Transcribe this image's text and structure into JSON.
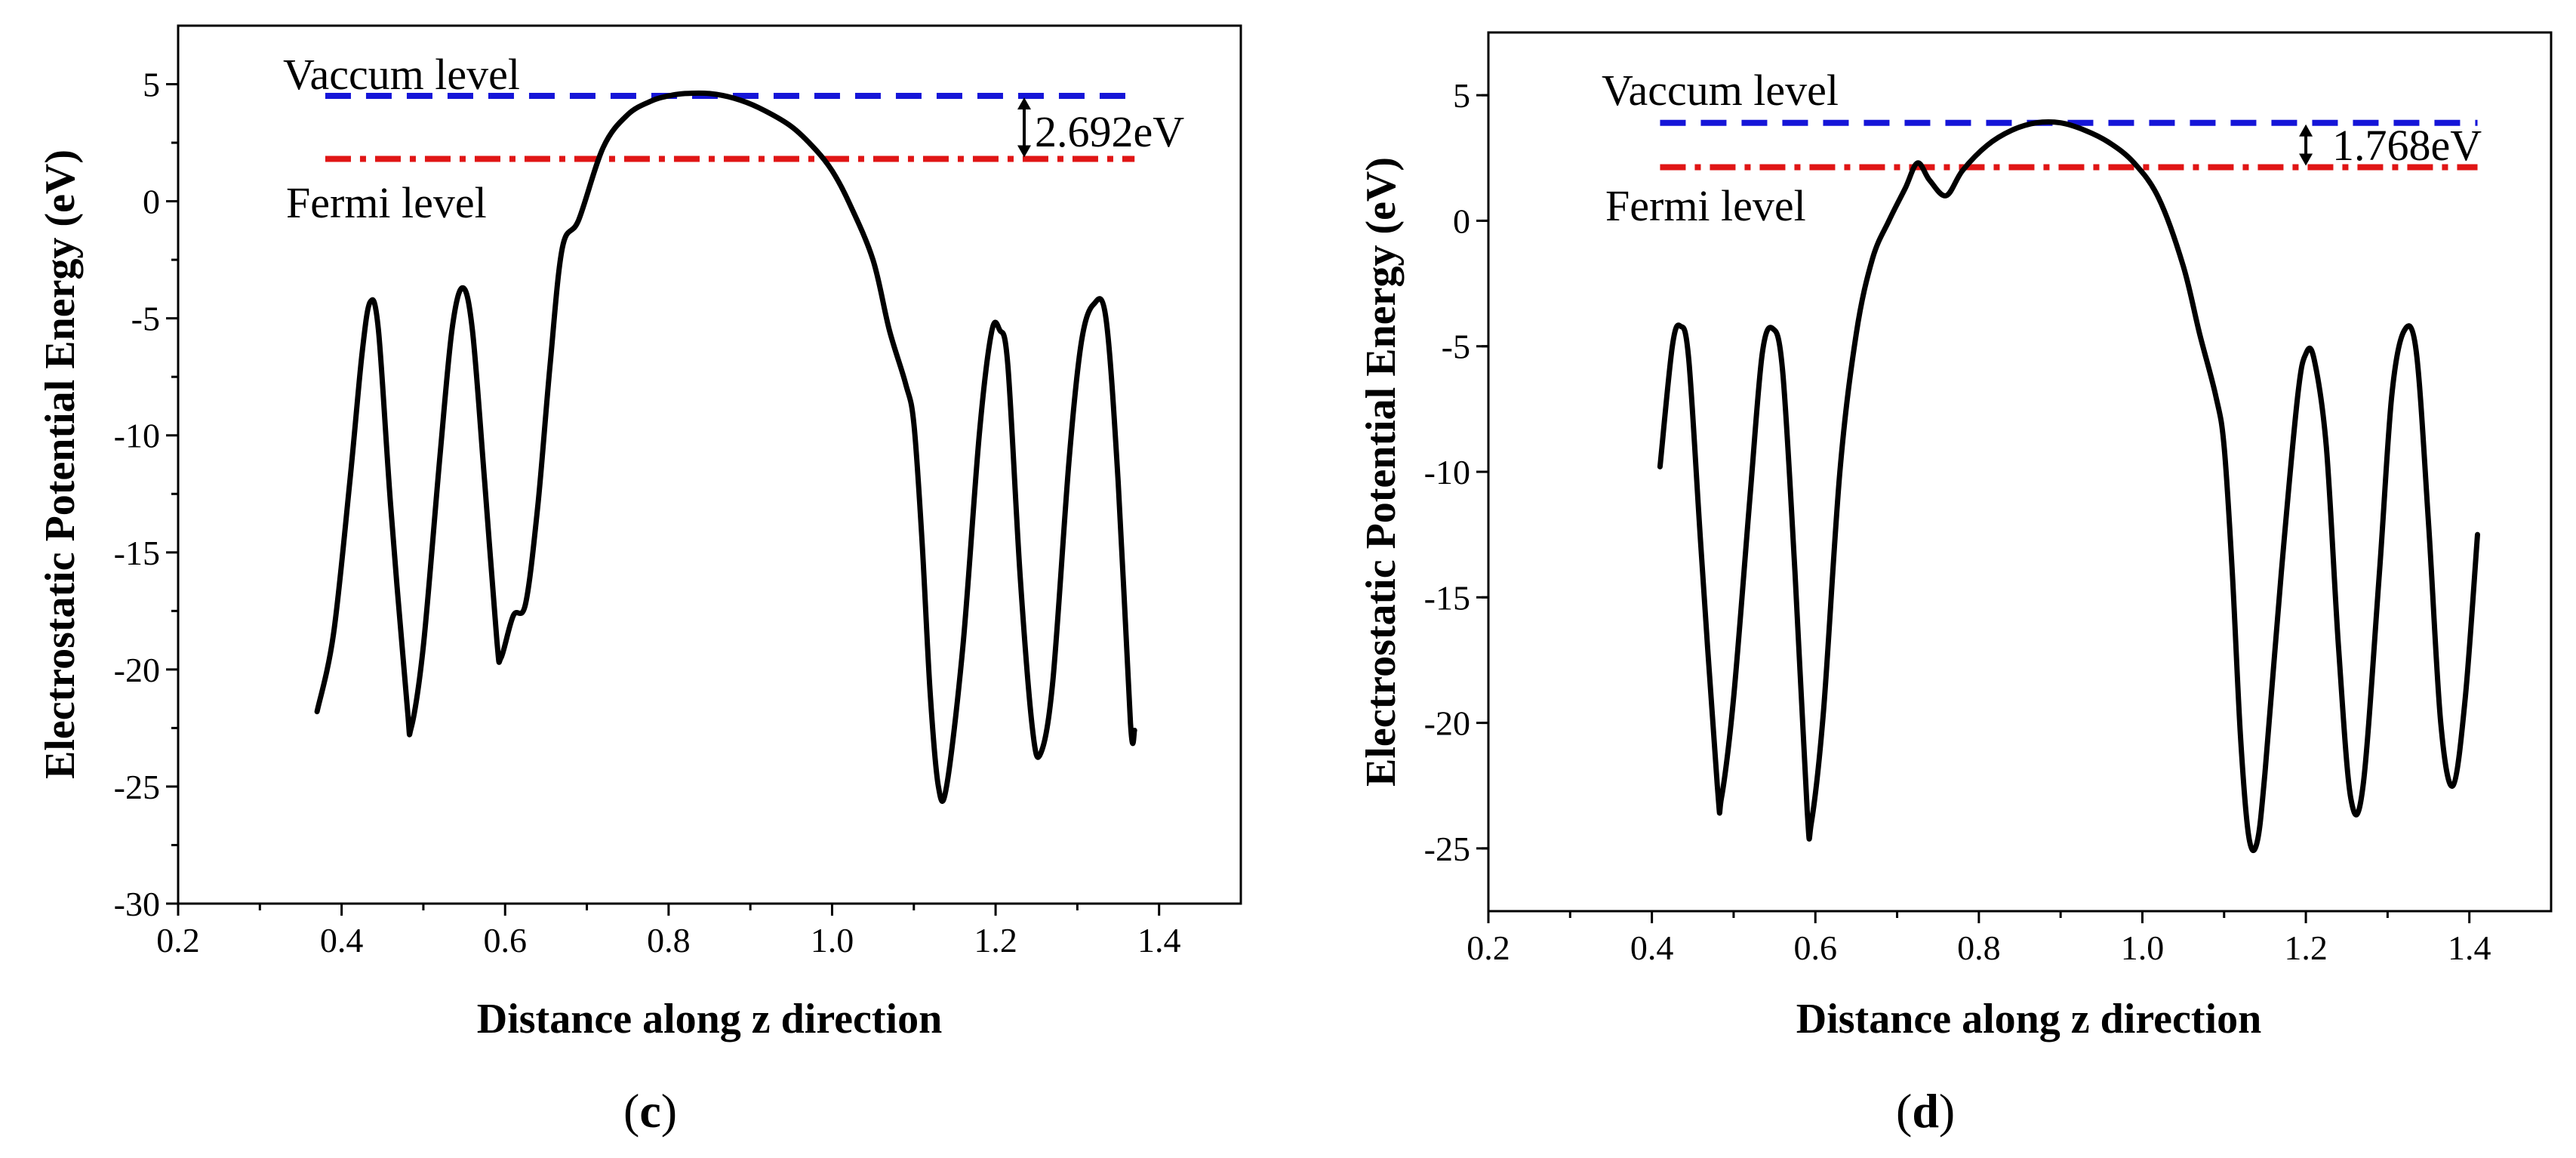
{
  "chart_data": [
    {
      "type": "line",
      "panel_label": "c",
      "xlabel": "Distance along z direction",
      "ylabel": "Electrostatic Potential Energy (eV)",
      "xlim": [
        0.2,
        1.5
      ],
      "ylim": [
        -30,
        7.5
      ],
      "xticks": [
        0.2,
        0.4,
        0.6,
        0.8,
        1.0,
        1.2,
        1.4
      ],
      "xtick_labels": [
        "0.2",
        "0.4",
        "0.6",
        "0.8",
        "1.0",
        "1.2",
        "1.4"
      ],
      "yticks": [
        5,
        0,
        -5,
        -10,
        -15,
        -20,
        -25,
        -30
      ],
      "ytick_labels": [
        "5",
        "0",
        "-5",
        "-10",
        "-15",
        "-20",
        "-25",
        "-30"
      ],
      "vacuum_level": {
        "label": "Vaccum level",
        "value": 4.5,
        "x_start": 0.38,
        "x_end": 1.37,
        "color": "#1515d8"
      },
      "fermi_level": {
        "label": "Fermi level",
        "value": 1.808,
        "x_start": 0.38,
        "x_end": 1.37,
        "color": "#e01515"
      },
      "gap": {
        "label": "2.692eV",
        "x": 1.235
      },
      "series": [
        {
          "name": "potential",
          "color": "#000000",
          "x": [
            0.37,
            0.39,
            0.41,
            0.425,
            0.435,
            0.445,
            0.46,
            0.48,
            0.485,
            0.5,
            0.52,
            0.535,
            0.548,
            0.56,
            0.575,
            0.59,
            0.595,
            0.61,
            0.625,
            0.64,
            0.655,
            0.67,
            0.69,
            0.72,
            0.75,
            0.78,
            0.8,
            0.82,
            0.85,
            0.88,
            0.91,
            0.95,
            0.98,
            1.0,
            1.02,
            1.05,
            1.07,
            1.09,
            1.1,
            1.11,
            1.12,
            1.13,
            1.14,
            1.16,
            1.18,
            1.195,
            1.205,
            1.215,
            1.23,
            1.245,
            1.255,
            1.27,
            1.29,
            1.305,
            1.32,
            1.335,
            1.35,
            1.365,
            1.37
          ],
          "y": [
            -21.8,
            -18.5,
            -12.0,
            -6.5,
            -4.3,
            -5.5,
            -13.0,
            -21.5,
            -22.5,
            -19.0,
            -11.0,
            -5.5,
            -3.7,
            -5.5,
            -12.0,
            -18.8,
            -19.5,
            -17.7,
            -17.2,
            -13.0,
            -7.0,
            -2.0,
            -0.8,
            2.3,
            3.7,
            4.3,
            4.5,
            4.6,
            4.6,
            4.4,
            4.0,
            3.2,
            2.2,
            1.3,
            0.0,
            -2.5,
            -5.5,
            -7.8,
            -9.5,
            -14.5,
            -21.0,
            -25.0,
            -25.0,
            -19.0,
            -10.0,
            -5.6,
            -5.5,
            -7.0,
            -16.0,
            -22.5,
            -23.6,
            -20.5,
            -11.0,
            -6.0,
            -4.4,
            -5.0,
            -12.0,
            -22.3,
            -22.6
          ]
        }
      ]
    },
    {
      "type": "line",
      "panel_label": "d",
      "xlabel": "Distance along z direction",
      "ylabel": "Electrostatic Potential Energy (eV)",
      "xlim": [
        0.2,
        1.5
      ],
      "ylim": [
        -27.5,
        7.5
      ],
      "xticks": [
        0.2,
        0.4,
        0.6,
        0.8,
        1.0,
        1.2,
        1.4
      ],
      "xtick_labels": [
        "0.2",
        "0.4",
        "0.6",
        "0.8",
        "1.0",
        "1.2",
        "1.4"
      ],
      "yticks": [
        5,
        0,
        -5,
        -10,
        -15,
        -20,
        -25
      ],
      "ytick_labels": [
        "5",
        "0",
        "-5",
        "-10",
        "-15",
        "-20",
        "-25"
      ],
      "vacuum_level": {
        "label": "Vaccum level",
        "value": 3.9,
        "x_start": 0.41,
        "x_end": 1.41,
        "color": "#1515d8"
      },
      "fermi_level": {
        "label": "Fermi level",
        "value": 2.132,
        "x_start": 0.41,
        "x_end": 1.41,
        "color": "#e01515"
      },
      "gap": {
        "label": "1.768eV",
        "x": 1.2
      },
      "series": [
        {
          "name": "potential",
          "color": "#000000",
          "x": [
            0.41,
            0.425,
            0.435,
            0.445,
            0.46,
            0.48,
            0.485,
            0.5,
            0.52,
            0.535,
            0.548,
            0.56,
            0.575,
            0.59,
            0.595,
            0.61,
            0.63,
            0.65,
            0.67,
            0.69,
            0.71,
            0.725,
            0.74,
            0.76,
            0.78,
            0.81,
            0.84,
            0.87,
            0.9,
            0.93,
            0.96,
            0.99,
            1.02,
            1.05,
            1.07,
            1.09,
            1.1,
            1.11,
            1.12,
            1.13,
            1.14,
            1.15,
            1.17,
            1.19,
            1.2,
            1.21,
            1.225,
            1.24,
            1.255,
            1.27,
            1.29,
            1.305,
            1.32,
            1.335,
            1.35,
            1.365,
            1.38,
            1.395,
            1.41
          ],
          "y": [
            -9.8,
            -5.0,
            -4.2,
            -5.5,
            -13.0,
            -22.5,
            -23.0,
            -19.0,
            -11.0,
            -5.3,
            -4.3,
            -6.0,
            -14.0,
            -23.5,
            -24.0,
            -19.5,
            -10.0,
            -4.5,
            -1.5,
            0.0,
            1.3,
            2.3,
            1.6,
            1.0,
            2.0,
            3.0,
            3.6,
            3.9,
            3.9,
            3.6,
            3.1,
            2.3,
            0.9,
            -1.8,
            -4.5,
            -7.0,
            -9.0,
            -14.0,
            -20.5,
            -24.5,
            -24.8,
            -22.0,
            -14.0,
            -7.0,
            -5.3,
            -5.5,
            -9.0,
            -17.0,
            -23.0,
            -22.5,
            -14.0,
            -7.0,
            -4.4,
            -5.2,
            -12.0,
            -20.0,
            -22.5,
            -19.0,
            -12.5
          ]
        }
      ]
    }
  ]
}
